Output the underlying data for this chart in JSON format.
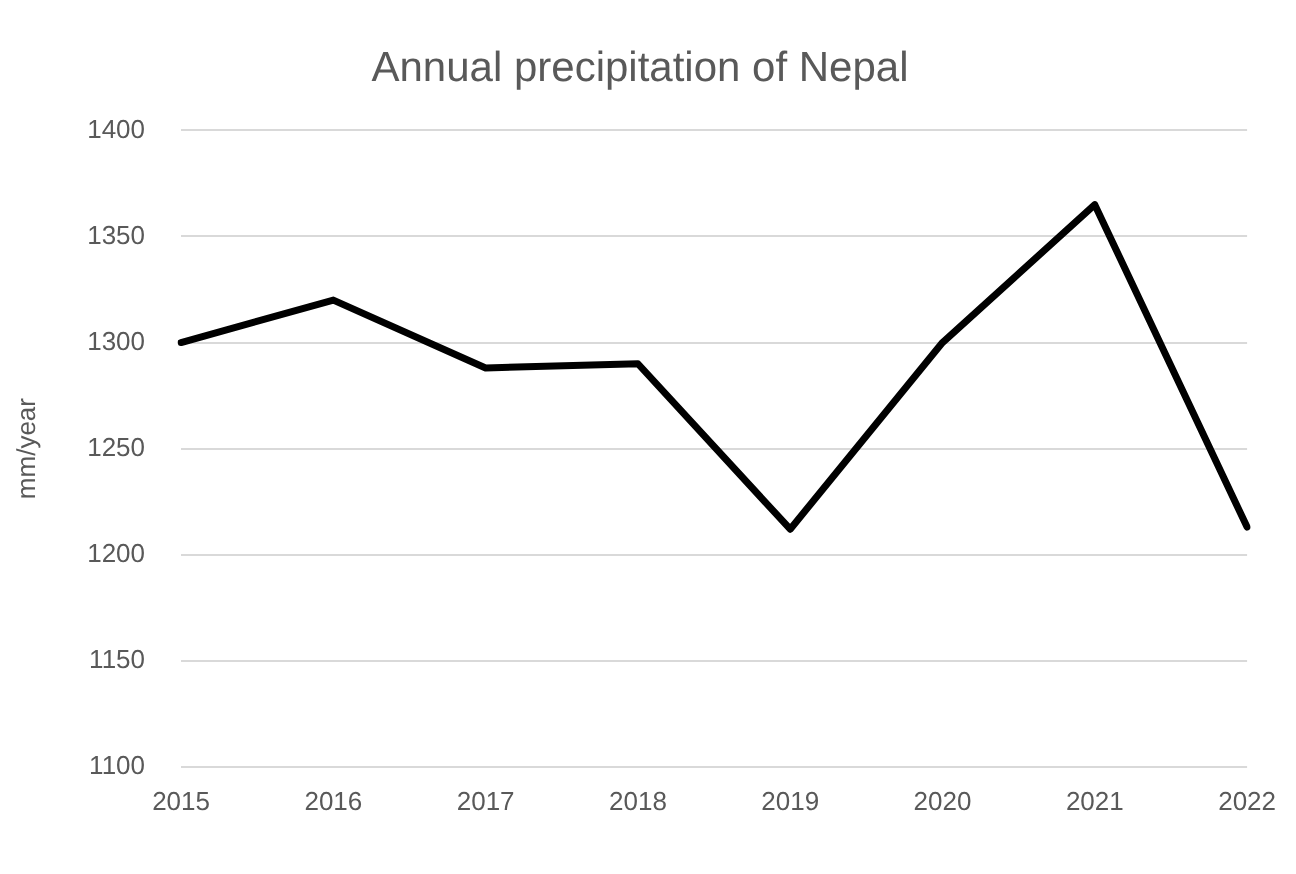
{
  "chart_data": {
    "type": "line",
    "title": "Annual precipitation of Nepal",
    "ylabel": "mm/year",
    "categories": [
      "2015",
      "2016",
      "2017",
      "2018",
      "2019",
      "2020",
      "2021",
      "2022"
    ],
    "series": [
      {
        "color": "#000000",
        "values": [
          1300,
          1320,
          1288,
          1290,
          1212,
          1300,
          1365,
          1213
        ]
      }
    ],
    "ylim": [
      1100,
      1400
    ],
    "yticks": [
      1100,
      1150,
      1200,
      1250,
      1300,
      1350,
      1400
    ],
    "grid": "y",
    "legend": false,
    "marker": "none",
    "line_style": "solid"
  }
}
